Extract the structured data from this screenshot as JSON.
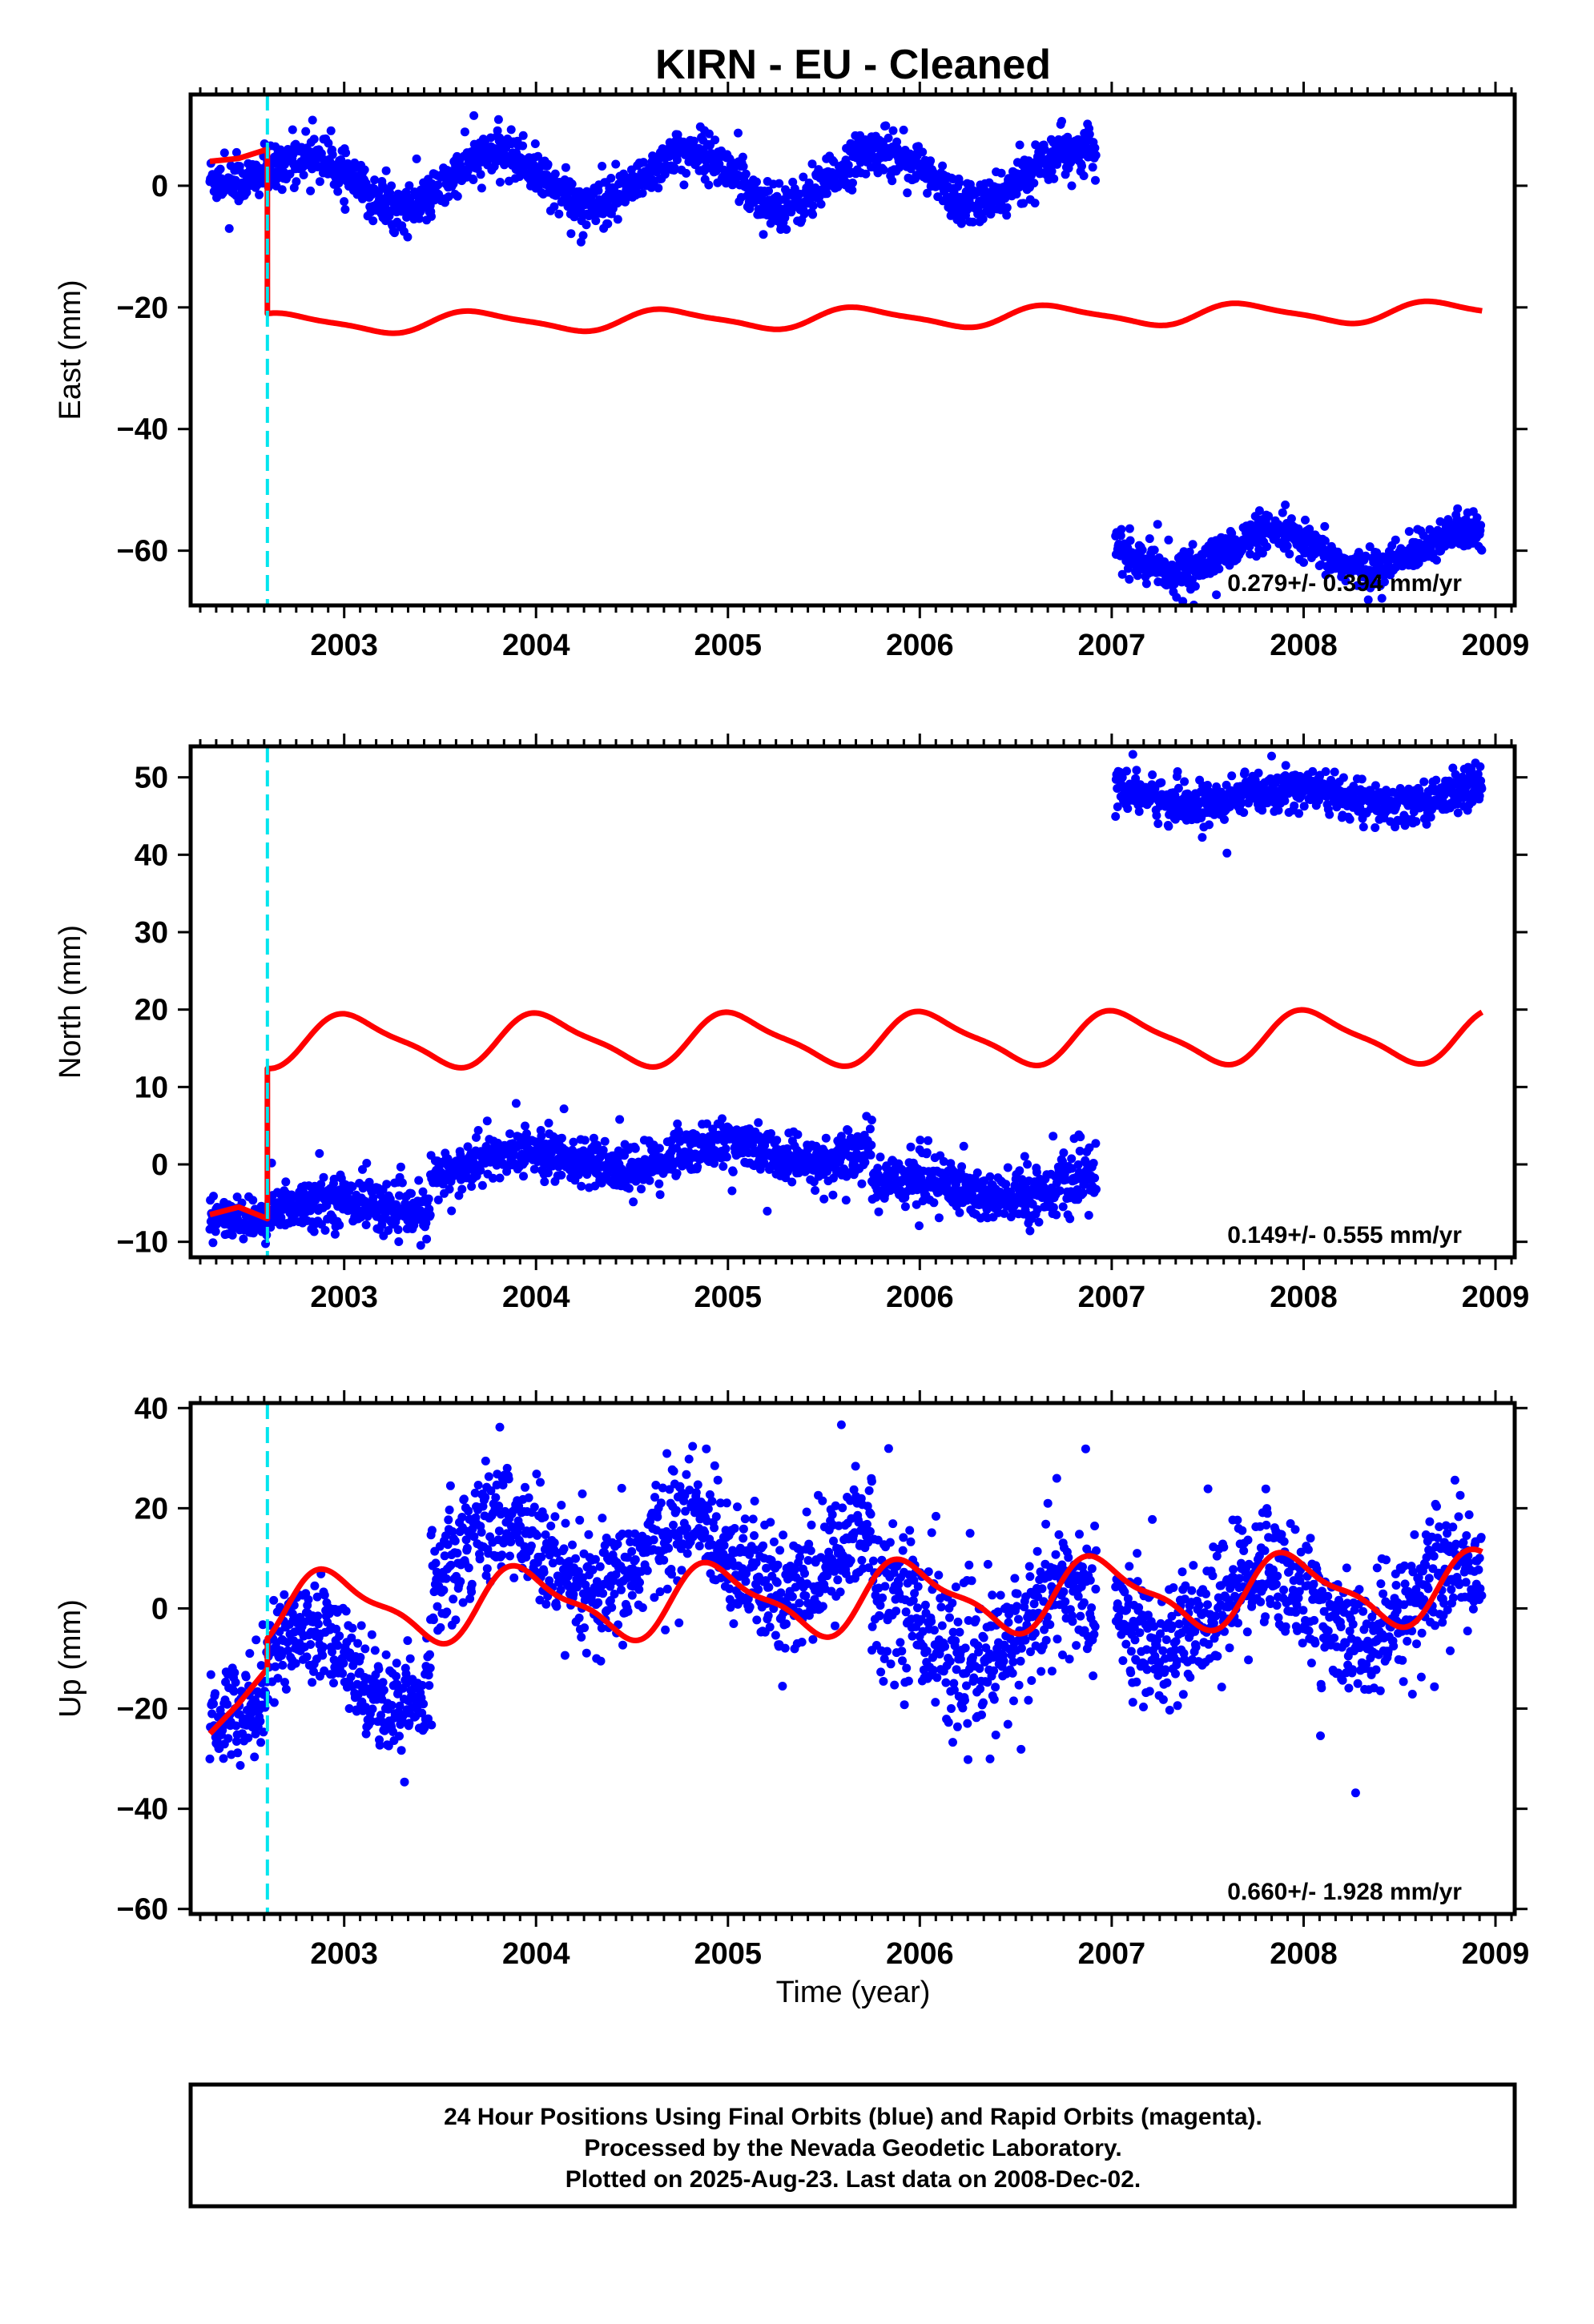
{
  "title": "KIRN  - EU - Cleaned",
  "xlabel": "Time (year)",
  "footer": [
    "24 Hour Positions Using Final Orbits (blue) and Rapid Orbits (magenta).",
    "Processed by the Nevada Geodetic Laboratory.",
    "Plotted on 2025-Aug-23. Last data on 2008-Dec-02."
  ],
  "colors": {
    "data": "#0000ff",
    "model": "#ff0000",
    "equipment_change": "#00e5ee",
    "frame": "#000000"
  },
  "chart_data": [
    {
      "type": "scatter",
      "ylabel": "East (mm)",
      "rate": "0.279+/- 0.394 mm/yr",
      "xlim": [
        2002.2,
        2009.1
      ],
      "ylim": [
        -69,
        15
      ],
      "yticks": [
        0,
        -20,
        -40,
        -60
      ],
      "xticks": [
        2003,
        2004,
        2005,
        2006,
        2007,
        2008,
        2009
      ],
      "equipment_change": 2002.6,
      "series": [
        {
          "kind": "points",
          "segments": [
            {
              "start": 2002.3,
              "end": 2002.6,
              "offset": 3,
              "trend": 4,
              "amp": 3,
              "phase": 0.3,
              "noise": 1.8
            },
            {
              "start": 2002.6,
              "end": 2006.92,
              "offset": 0.5,
              "trend": 0.3,
              "amp": 4.5,
              "phase": 0.45,
              "noise": 1.8
            },
            {
              "start": 2007.02,
              "end": 2008.93,
              "offset": -60.5,
              "trend": 0.3,
              "amp": 3,
              "phase": 0.42,
              "noise": 1.5
            }
          ]
        },
        {
          "kind": "model",
          "segments": [
            {
              "start": 2002.3,
              "end": 2002.6,
              "values": [
                [
                  2002.3,
                  4
                ],
                [
                  2002.45,
                  4.5
                ],
                [
                  2002.6,
                  6
                ]
              ]
            },
            {
              "start": 2002.6,
              "end": 2008.93,
              "offset": -22.7,
              "trend": 0.32,
              "amp": 1.6,
              "amp2": 0.4,
              "phase": 0.55
            }
          ]
        }
      ]
    },
    {
      "type": "scatter",
      "ylabel": "North (mm)",
      "rate": "0.149+/- 0.555 mm/yr",
      "xlim": [
        2002.2,
        2009.1
      ],
      "ylim": [
        -12,
        54
      ],
      "yticks": [
        50,
        40,
        30,
        20,
        10,
        0,
        -10
      ],
      "xticks": [
        2003,
        2004,
        2005,
        2006,
        2007,
        2008,
        2009
      ],
      "equipment_change": 2002.6,
      "series": [
        {
          "kind": "points",
          "segments": [
            {
              "start": 2002.3,
              "end": 2002.6,
              "offset": -6.5,
              "trend": 0,
              "amp": 1,
              "phase": 0.2,
              "noise": 1.2
            },
            {
              "start": 2002.6,
              "end": 2003.45,
              "offset": -5.5,
              "trend": 0,
              "amp": 1,
              "phase": 0.3,
              "noise": 1.5
            },
            {
              "start": 2003.45,
              "end": 2005.75,
              "offset": 0,
              "trend": 0.8,
              "amp": 1.5,
              "phase": 0.3,
              "noise": 1.5
            },
            {
              "start": 2005.75,
              "end": 2006.92,
              "offset": -3,
              "trend": 0,
              "amp": 1.5,
              "phase": 0.3,
              "noise": 1.8
            },
            {
              "start": 2007.02,
              "end": 2008.93,
              "offset": 47.5,
              "trend": 0,
              "amp": 1.2,
              "phase": 0.3,
              "noise": 1.3
            }
          ]
        },
        {
          "kind": "model",
          "segments": [
            {
              "start": 2002.3,
              "end": 2002.6,
              "values": [
                [
                  2002.3,
                  -6.5
                ],
                [
                  2002.45,
                  -5.5
                ],
                [
                  2002.6,
                  -7
                ]
              ]
            },
            {
              "start": 2002.6,
              "end": 2008.93,
              "offset": 15.9,
              "trend": 0.1,
              "amp": 3.2,
              "amp2": 0.8,
              "phase": 0.2
            }
          ]
        }
      ]
    },
    {
      "type": "scatter",
      "ylabel": "Up (mm)",
      "rate": "0.660+/- 1.928 mm/yr",
      "xlim": [
        2002.2,
        2009.1
      ],
      "ylim": [
        -61,
        41
      ],
      "yticks": [
        40,
        20,
        0,
        -20,
        -40,
        -60
      ],
      "xticks": [
        2003,
        2004,
        2005,
        2006,
        2007,
        2008,
        2009
      ],
      "equipment_change": 2002.6,
      "series": [
        {
          "kind": "points",
          "segments": [
            {
              "start": 2002.3,
              "end": 2002.6,
              "offset": -20,
              "trend": 20,
              "amp": 3,
              "phase": 0.3,
              "noise": 5
            },
            {
              "start": 2002.6,
              "end": 2003.45,
              "offset": -12,
              "trend": 0,
              "amp": 8,
              "phase": 0.45,
              "noise": 5
            },
            {
              "start": 2003.45,
              "end": 2005.75,
              "offset": 10,
              "trend": 0,
              "amp": 8,
              "phase": 0.45,
              "noise": 6
            },
            {
              "start": 2005.75,
              "end": 2006.92,
              "offset": -4,
              "trend": 0,
              "amp": 8,
              "phase": 0.45,
              "noise": 7
            },
            {
              "start": 2007.02,
              "end": 2008.93,
              "offset": 0,
              "trend": 0.5,
              "amp": 8,
              "phase": 0.45,
              "noise": 6
            }
          ]
        },
        {
          "kind": "model",
          "segments": [
            {
              "start": 2002.3,
              "end": 2002.6,
              "values": [
                [
                  2002.3,
                  -25
                ],
                [
                  2002.45,
                  -19
                ],
                [
                  2002.6,
                  -12
                ]
              ]
            },
            {
              "start": 2002.6,
              "end": 2008.93,
              "offset": 0,
              "trend": 0.66,
              "amp": 6.6,
              "amp2": 2.2,
              "phase": 0.3
            }
          ]
        }
      ]
    }
  ]
}
